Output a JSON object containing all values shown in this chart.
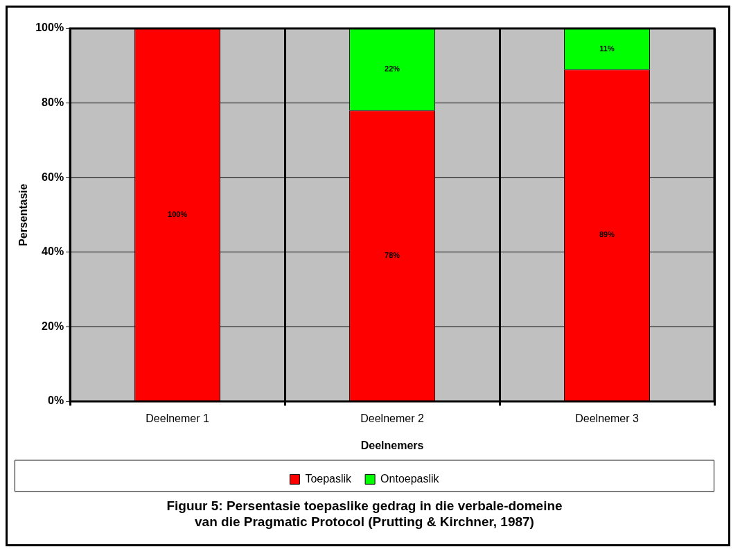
{
  "chart_data": {
    "type": "bar",
    "stacked": true,
    "title": "Figuur 5: Persentasie toepaslike gedrag in die verbale-domeine van die Pragmatic Protocol (Prutting & Kirchner, 1987)",
    "xlabel": "Deelnemers",
    "ylabel": "Persentasie",
    "categories": [
      "Deelnemer 1",
      "Deelnemer 2",
      "Deelnemer 3"
    ],
    "series": [
      {
        "name": "Toepaslik",
        "color": "#ff0000",
        "values": [
          100,
          78,
          89
        ],
        "value_labels": [
          "100%",
          "78%",
          "89%"
        ]
      },
      {
        "name": "Ontoepaslik",
        "color": "#00ff00",
        "values": [
          0,
          22,
          11
        ],
        "value_labels": [
          null,
          "22%",
          "11%"
        ]
      }
    ],
    "ylim": [
      0,
      100
    ],
    "yticks": [
      {
        "value": 0,
        "label": "0%"
      },
      {
        "value": 20,
        "label": "20%"
      },
      {
        "value": 40,
        "label": "40%"
      },
      {
        "value": 60,
        "label": "60%"
      },
      {
        "value": 80,
        "label": "80%"
      },
      {
        "value": 100,
        "label": "100%"
      }
    ],
    "grid": true,
    "legend": "bottom"
  }
}
